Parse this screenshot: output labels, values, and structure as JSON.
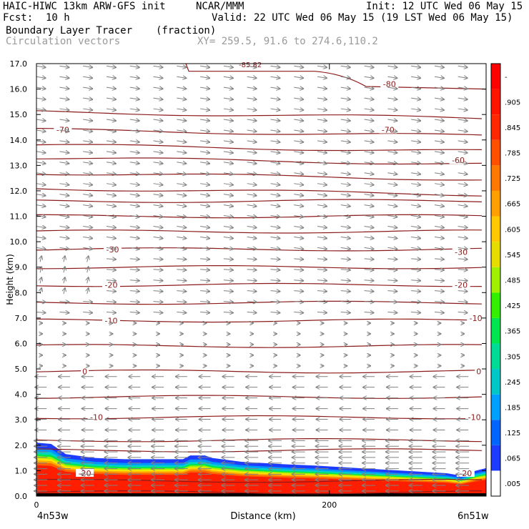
{
  "header": {
    "line1_left": "HAIC-HIWC 13km ARW-GFS init",
    "line1_mid": "NCAR/MMM",
    "line1_right": "Init: 12 UTC Wed 06 May 15",
    "fcst_label": "Fcst:",
    "fcst_value": "10 h",
    "valid": "Valid: 22 UTC Wed 06 May 15 (19 LST Wed 06 May 15)",
    "field_name": "Boundary Layer Tracer",
    "field_units": "(fraction)",
    "vector_label": "Circulation vectors",
    "xy_label": "XY= 259.5, 91.6 to 274.6,110.2"
  },
  "colors": {
    "contour": "#8b1a1a",
    "vector": "#808080",
    "fill_high": "#ff1e00"
  },
  "chart_data": {
    "type": "heatmap",
    "xlabel": "Distance (km)",
    "ylabel": "Height (km)",
    "xlim": [
      0,
      307
    ],
    "ylim": [
      0,
      17
    ],
    "x_ticks": [
      {
        "v": 0,
        "label": "0"
      },
      {
        "v": 200,
        "label": "200"
      }
    ],
    "x_endpoints": {
      "left": "4n53w",
      "right": "6n51w"
    },
    "y_ticks": [
      "0.0",
      "1.0",
      "2.0",
      "3.0",
      "4.0",
      "5.0",
      "6.0",
      "7.0",
      "8.0",
      "9.0",
      "10.0",
      "11.0",
      "12.0",
      "13.0",
      "14.0",
      "15.0",
      "16.0",
      "17.0"
    ],
    "colorbar_labels": [
      ".005",
      ".065",
      ".125",
      ".185",
      ".245",
      ".305",
      ".365",
      ".425",
      ".485",
      ".545",
      ".605",
      ".665",
      ".725",
      ".785",
      ".845",
      ".905",
      "-"
    ],
    "colorbar_colors": [
      "#ffffff",
      "#1e3cff",
      "#0064ff",
      "#00a0ff",
      "#00c8c8",
      "#00dc96",
      "#00e650",
      "#32f000",
      "#a0f000",
      "#e6dc00",
      "#ffc800",
      "#ffa000",
      "#ff7800",
      "#ff5000",
      "#ff2800",
      "#ff1400",
      "#ff0000"
    ],
    "bl_top_km": [
      [
        0,
        2.1
      ],
      [
        10,
        2.05
      ],
      [
        20,
        1.65
      ],
      [
        40,
        1.5
      ],
      [
        60,
        1.45
      ],
      [
        100,
        1.45
      ],
      [
        105,
        1.6
      ],
      [
        115,
        1.6
      ],
      [
        120,
        1.5
      ],
      [
        140,
        1.35
      ],
      [
        170,
        1.25
      ],
      [
        190,
        1.2
      ],
      [
        220,
        1.1
      ],
      [
        250,
        1.0
      ],
      [
        280,
        0.9
      ],
      [
        290,
        0.8
      ],
      [
        300,
        1.0
      ],
      [
        307,
        1.1
      ]
    ],
    "contour_labels": [
      {
        "text": "-80",
        "x": 241,
        "y": 16.2
      },
      {
        "text": "-70",
        "x": 18,
        "y": 14.4
      },
      {
        "text": "-70",
        "x": 240,
        "y": 14.4
      },
      {
        "text": "-60",
        "x": 288,
        "y": 13.2
      },
      {
        "text": "-30",
        "x": 52,
        "y": 9.7
      },
      {
        "text": "-30",
        "x": 290,
        "y": 9.6
      },
      {
        "text": "-20",
        "x": 51,
        "y": 8.3
      },
      {
        "text": "-20",
        "x": 290,
        "y": 8.3
      },
      {
        "text": "-10",
        "x": 51,
        "y": 6.9
      },
      {
        "text": "-10",
        "x": 300,
        "y": 7.0
      },
      {
        "text": "0",
        "x": 33,
        "y": 4.9
      },
      {
        "text": "0",
        "x": 302,
        "y": 4.9
      },
      {
        "text": "-10",
        "x": 41,
        "y": 3.1
      },
      {
        "text": "-10",
        "x": 299,
        "y": 3.1
      },
      {
        "text": "-20",
        "x": 33,
        "y": 0.9
      },
      {
        "text": "-20",
        "x": 293,
        "y": 0.9
      }
    ],
    "top_fragment": "-85.82"
  }
}
